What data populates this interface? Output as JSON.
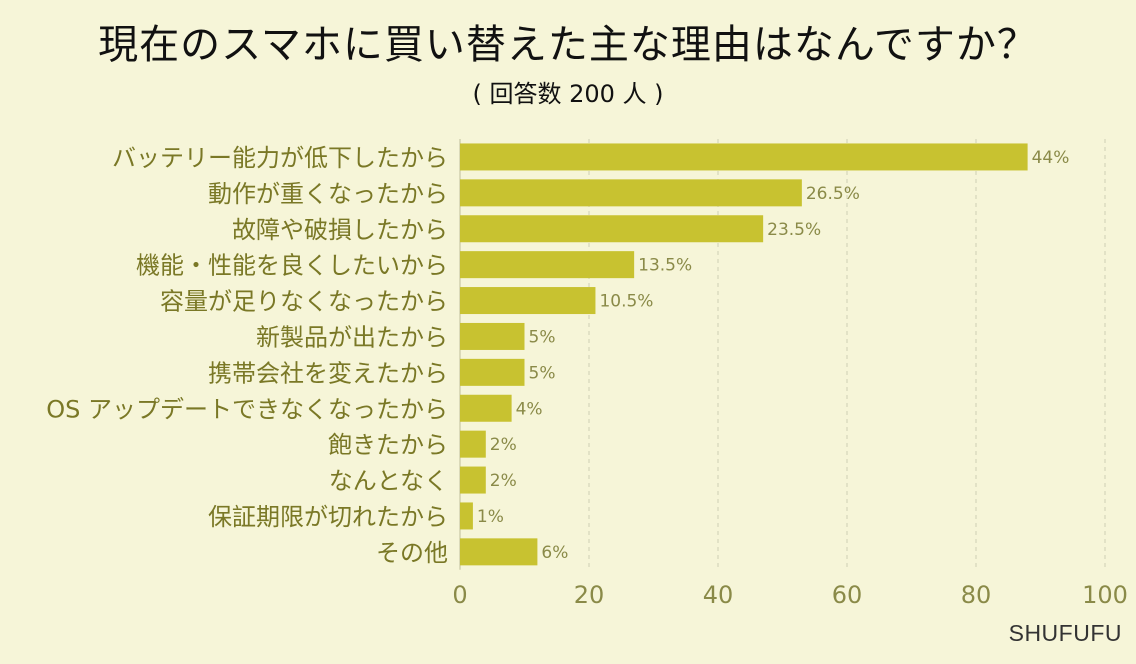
{
  "brand": "SHUFUFU",
  "colors": {
    "background": "#f6f5d8",
    "bar": "#c8c230",
    "label": "#7a7826",
    "value_label": "#8a8a48"
  },
  "chart_data": {
    "type": "bar",
    "orientation": "horizontal",
    "title": "現在のスマホに買い替えた主な理由はなんですか？",
    "subtitle": "( 回答数 200 人 )",
    "categories": [
      "バッテリー能力が低下したから",
      "動作が重くなったから",
      "故障や破損したから",
      "機能・性能を良くしたいから",
      "容量が足りなくなったから",
      "新製品が出たから",
      "携帯会社を変えたから",
      "OS アップデートできなくなったから",
      "飽きたから",
      "なんとなく",
      "保証期限が切れたから",
      "その他"
    ],
    "values": [
      88,
      53,
      47,
      27,
      21,
      10,
      10,
      8,
      4,
      4,
      2,
      12
    ],
    "value_labels": [
      "44%",
      "26.5%",
      "23.5%",
      "13.5%",
      "10.5%",
      "5%",
      "5%",
      "4%",
      "2%",
      "2%",
      "1%",
      "6%"
    ],
    "xlim": [
      0,
      100
    ],
    "xticks": [
      "0",
      "20",
      "40",
      "60",
      "80",
      "100"
    ],
    "grid": true,
    "xlabel": "",
    "ylabel": ""
  }
}
